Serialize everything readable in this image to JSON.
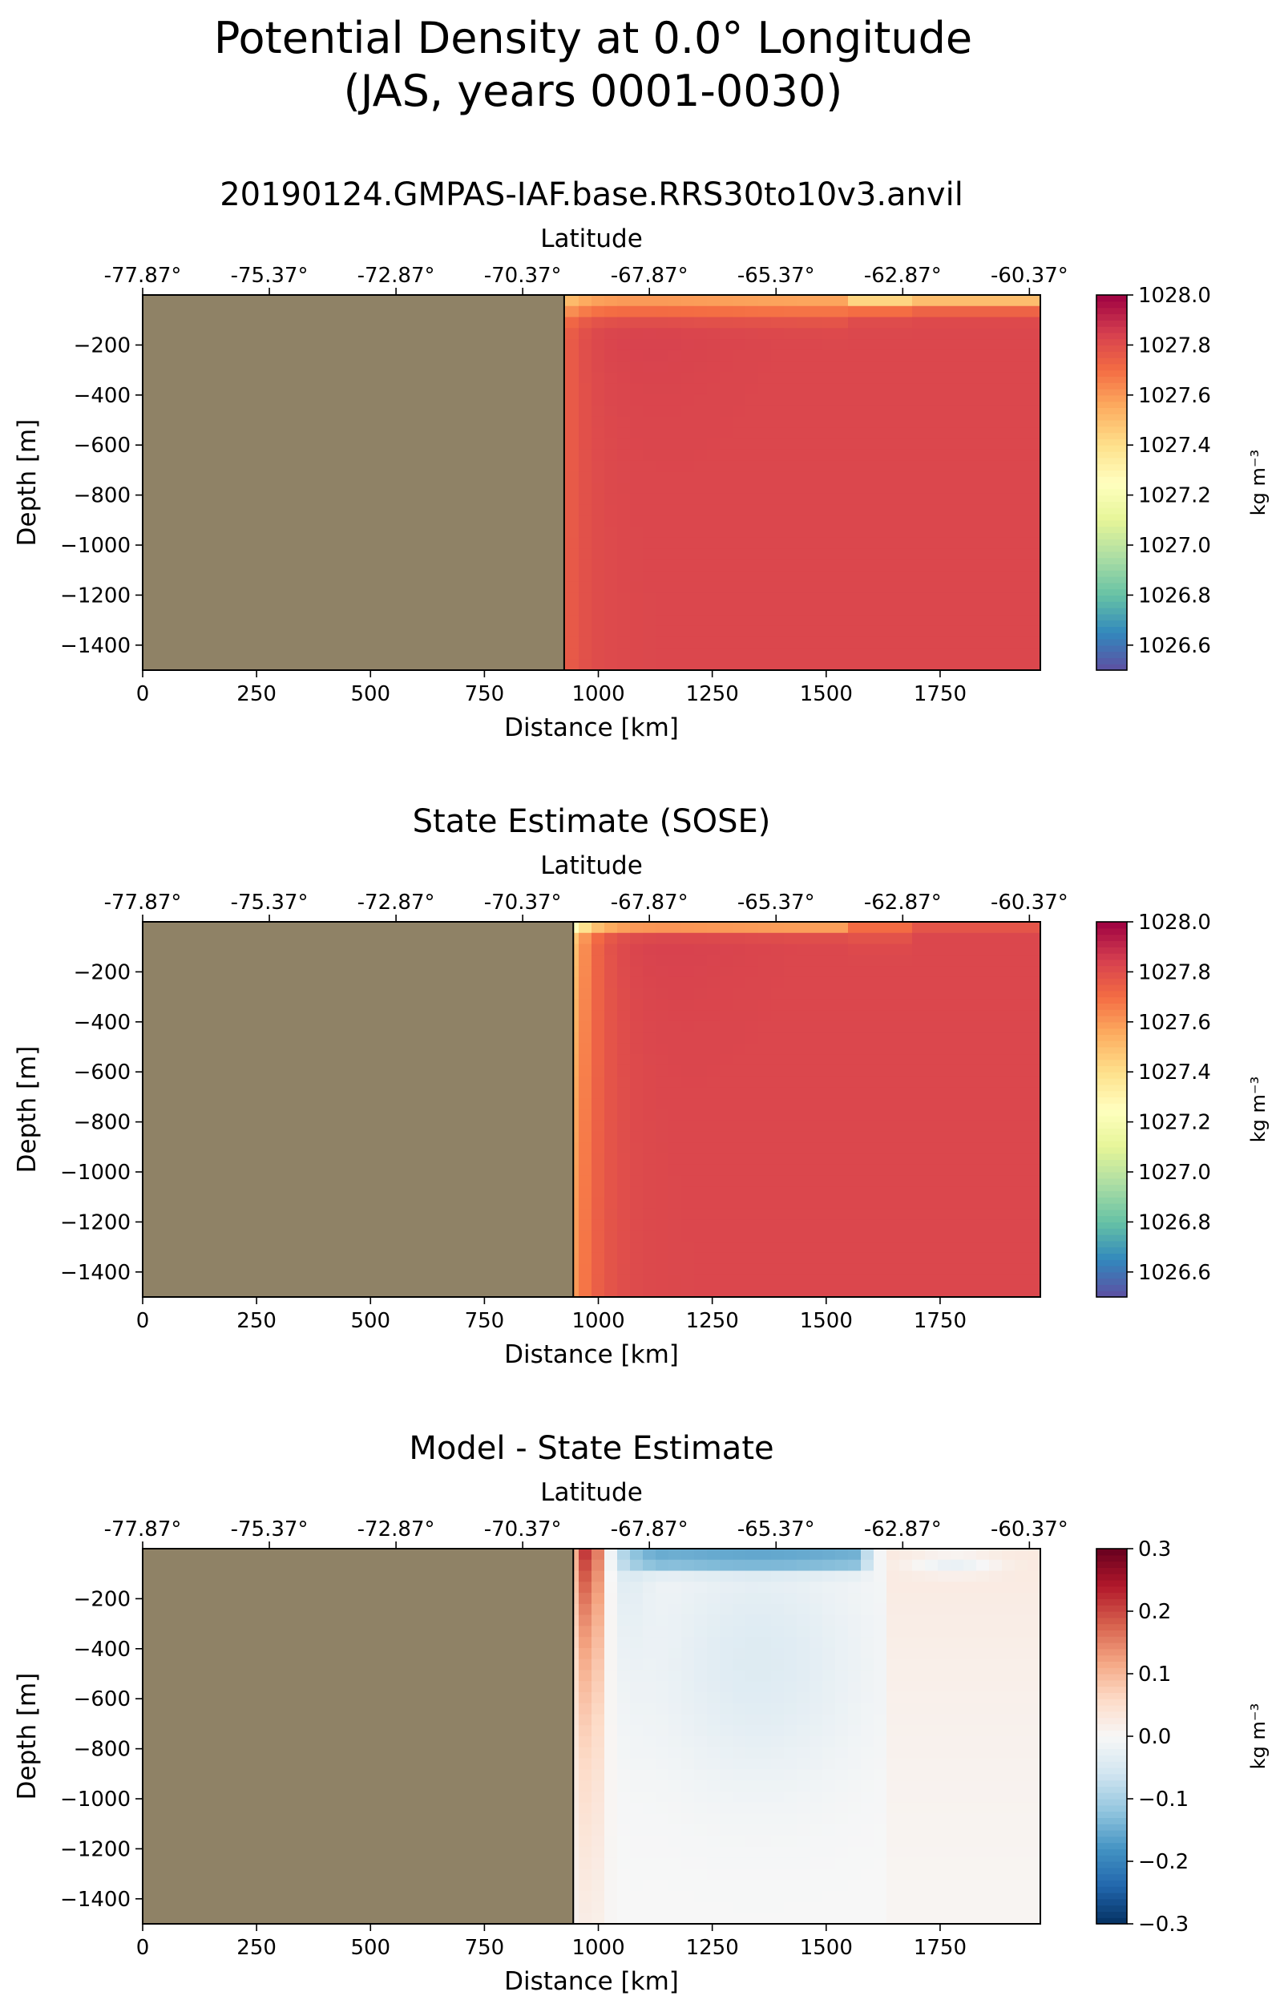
{
  "figure": {
    "title_line1": "Potential Density at 0.0° Longitude",
    "title_line2": "(JAS, years 0001-0030)"
  },
  "colors": {
    "land": "#8f8266",
    "land_edge": "#000000"
  },
  "chart_data": [
    {
      "type": "heatmap",
      "title": "20190124.GMPAS-IAF.base.RRS30to10v3.anvil",
      "xlabel": "Distance [km]",
      "ylabel": "Depth [m]",
      "top_xlabel": "Latitude",
      "xlim": [
        0,
        1970
      ],
      "ylim": [
        -1500,
        0
      ],
      "xticks": [
        0,
        250,
        500,
        750,
        1000,
        1250,
        1500,
        1750
      ],
      "yticks": [
        -200,
        -400,
        -600,
        -800,
        -1000,
        -1200,
        -1400
      ],
      "top_xtick_positions_km": [
        0,
        278,
        556,
        834,
        1112,
        1390,
        1668,
        1946
      ],
      "top_xtick_labels": [
        "-77.87°",
        "-75.37°",
        "-72.87°",
        "-70.37°",
        "-67.87°",
        "-65.37°",
        "-62.87°",
        "-60.37°"
      ],
      "land_boundary_km": 925,
      "colorbar": {
        "label": "kg m⁻³",
        "range": [
          1026.5,
          1028.0
        ],
        "ticks": [
          1026.6,
          1026.8,
          1027.0,
          1027.2,
          1027.4,
          1027.6,
          1027.8,
          1028.0
        ],
        "tick_labels": [
          "1026.6",
          "1026.8",
          "1027.0",
          "1027.2",
          "1027.4",
          "1027.6",
          "1027.8",
          "1028.0"
        ],
        "colormap": "Spectral_r"
      },
      "field": {
        "deep_value": 1027.82,
        "shelf_break_value": 1027.68,
        "surface_value_west": 1027.55,
        "surface_value_east": 1027.45,
        "surface_layer_depth_m": 80
      }
    },
    {
      "type": "heatmap",
      "title": "State Estimate (SOSE)",
      "xlabel": "Distance [km]",
      "ylabel": "Depth [m]",
      "top_xlabel": "Latitude",
      "xlim": [
        0,
        1970
      ],
      "ylim": [
        -1500,
        0
      ],
      "xticks": [
        0,
        250,
        500,
        750,
        1000,
        1250,
        1500,
        1750
      ],
      "yticks": [
        -200,
        -400,
        -600,
        -800,
        -1000,
        -1200,
        -1400
      ],
      "top_xtick_positions_km": [
        0,
        278,
        556,
        834,
        1112,
        1390,
        1668,
        1946
      ],
      "top_xtick_labels": [
        "-77.87°",
        "-75.37°",
        "-72.87°",
        "-70.37°",
        "-67.87°",
        "-65.37°",
        "-62.87°",
        "-60.37°"
      ],
      "land_boundary_km": 945,
      "colorbar": {
        "label": "kg m⁻³",
        "range": [
          1026.5,
          1028.0
        ],
        "ticks": [
          1026.6,
          1026.8,
          1027.0,
          1027.2,
          1027.4,
          1027.6,
          1027.8,
          1028.0
        ],
        "tick_labels": [
          "1026.6",
          "1026.8",
          "1027.0",
          "1027.2",
          "1027.4",
          "1027.6",
          "1027.8",
          "1028.0"
        ],
        "colormap": "Spectral_r"
      },
      "field": {
        "deep_value": 1027.82,
        "shelf_break_value": 1027.4,
        "surface_value_west": 1027.5,
        "surface_value_east": 1027.45,
        "surface_layer_depth_m": 40
      }
    },
    {
      "type": "heatmap",
      "title": "Model - State Estimate",
      "xlabel": "Distance [km]",
      "ylabel": "Depth [m]",
      "top_xlabel": "Latitude",
      "xlim": [
        0,
        1970
      ],
      "ylim": [
        -1500,
        0
      ],
      "xticks": [
        0,
        250,
        500,
        750,
        1000,
        1250,
        1500,
        1750
      ],
      "yticks": [
        -200,
        -400,
        -600,
        -800,
        -1000,
        -1200,
        -1400
      ],
      "top_xtick_positions_km": [
        0,
        278,
        556,
        834,
        1112,
        1390,
        1668,
        1946
      ],
      "top_xtick_labels": [
        "-77.87°",
        "-75.37°",
        "-72.87°",
        "-70.37°",
        "-67.87°",
        "-65.37°",
        "-62.87°",
        "-60.37°"
      ],
      "land_boundary_km": 945,
      "colorbar": {
        "label": "kg m⁻³",
        "range": [
          -0.3,
          0.3
        ],
        "ticks": [
          -0.3,
          -0.2,
          -0.1,
          0.0,
          0.1,
          0.2,
          0.3
        ],
        "tick_labels": [
          "−0.3",
          "−0.2",
          "−0.1",
          "0.0",
          "0.1",
          "0.2",
          "0.3"
        ],
        "colormap": "RdBu_r"
      },
      "field": {
        "shelf_break_anomaly": 0.24,
        "surface_blue_anomaly": -0.16,
        "interior_blue_anomaly": -0.04,
        "eastern_red_anomaly": 0.03
      }
    }
  ]
}
